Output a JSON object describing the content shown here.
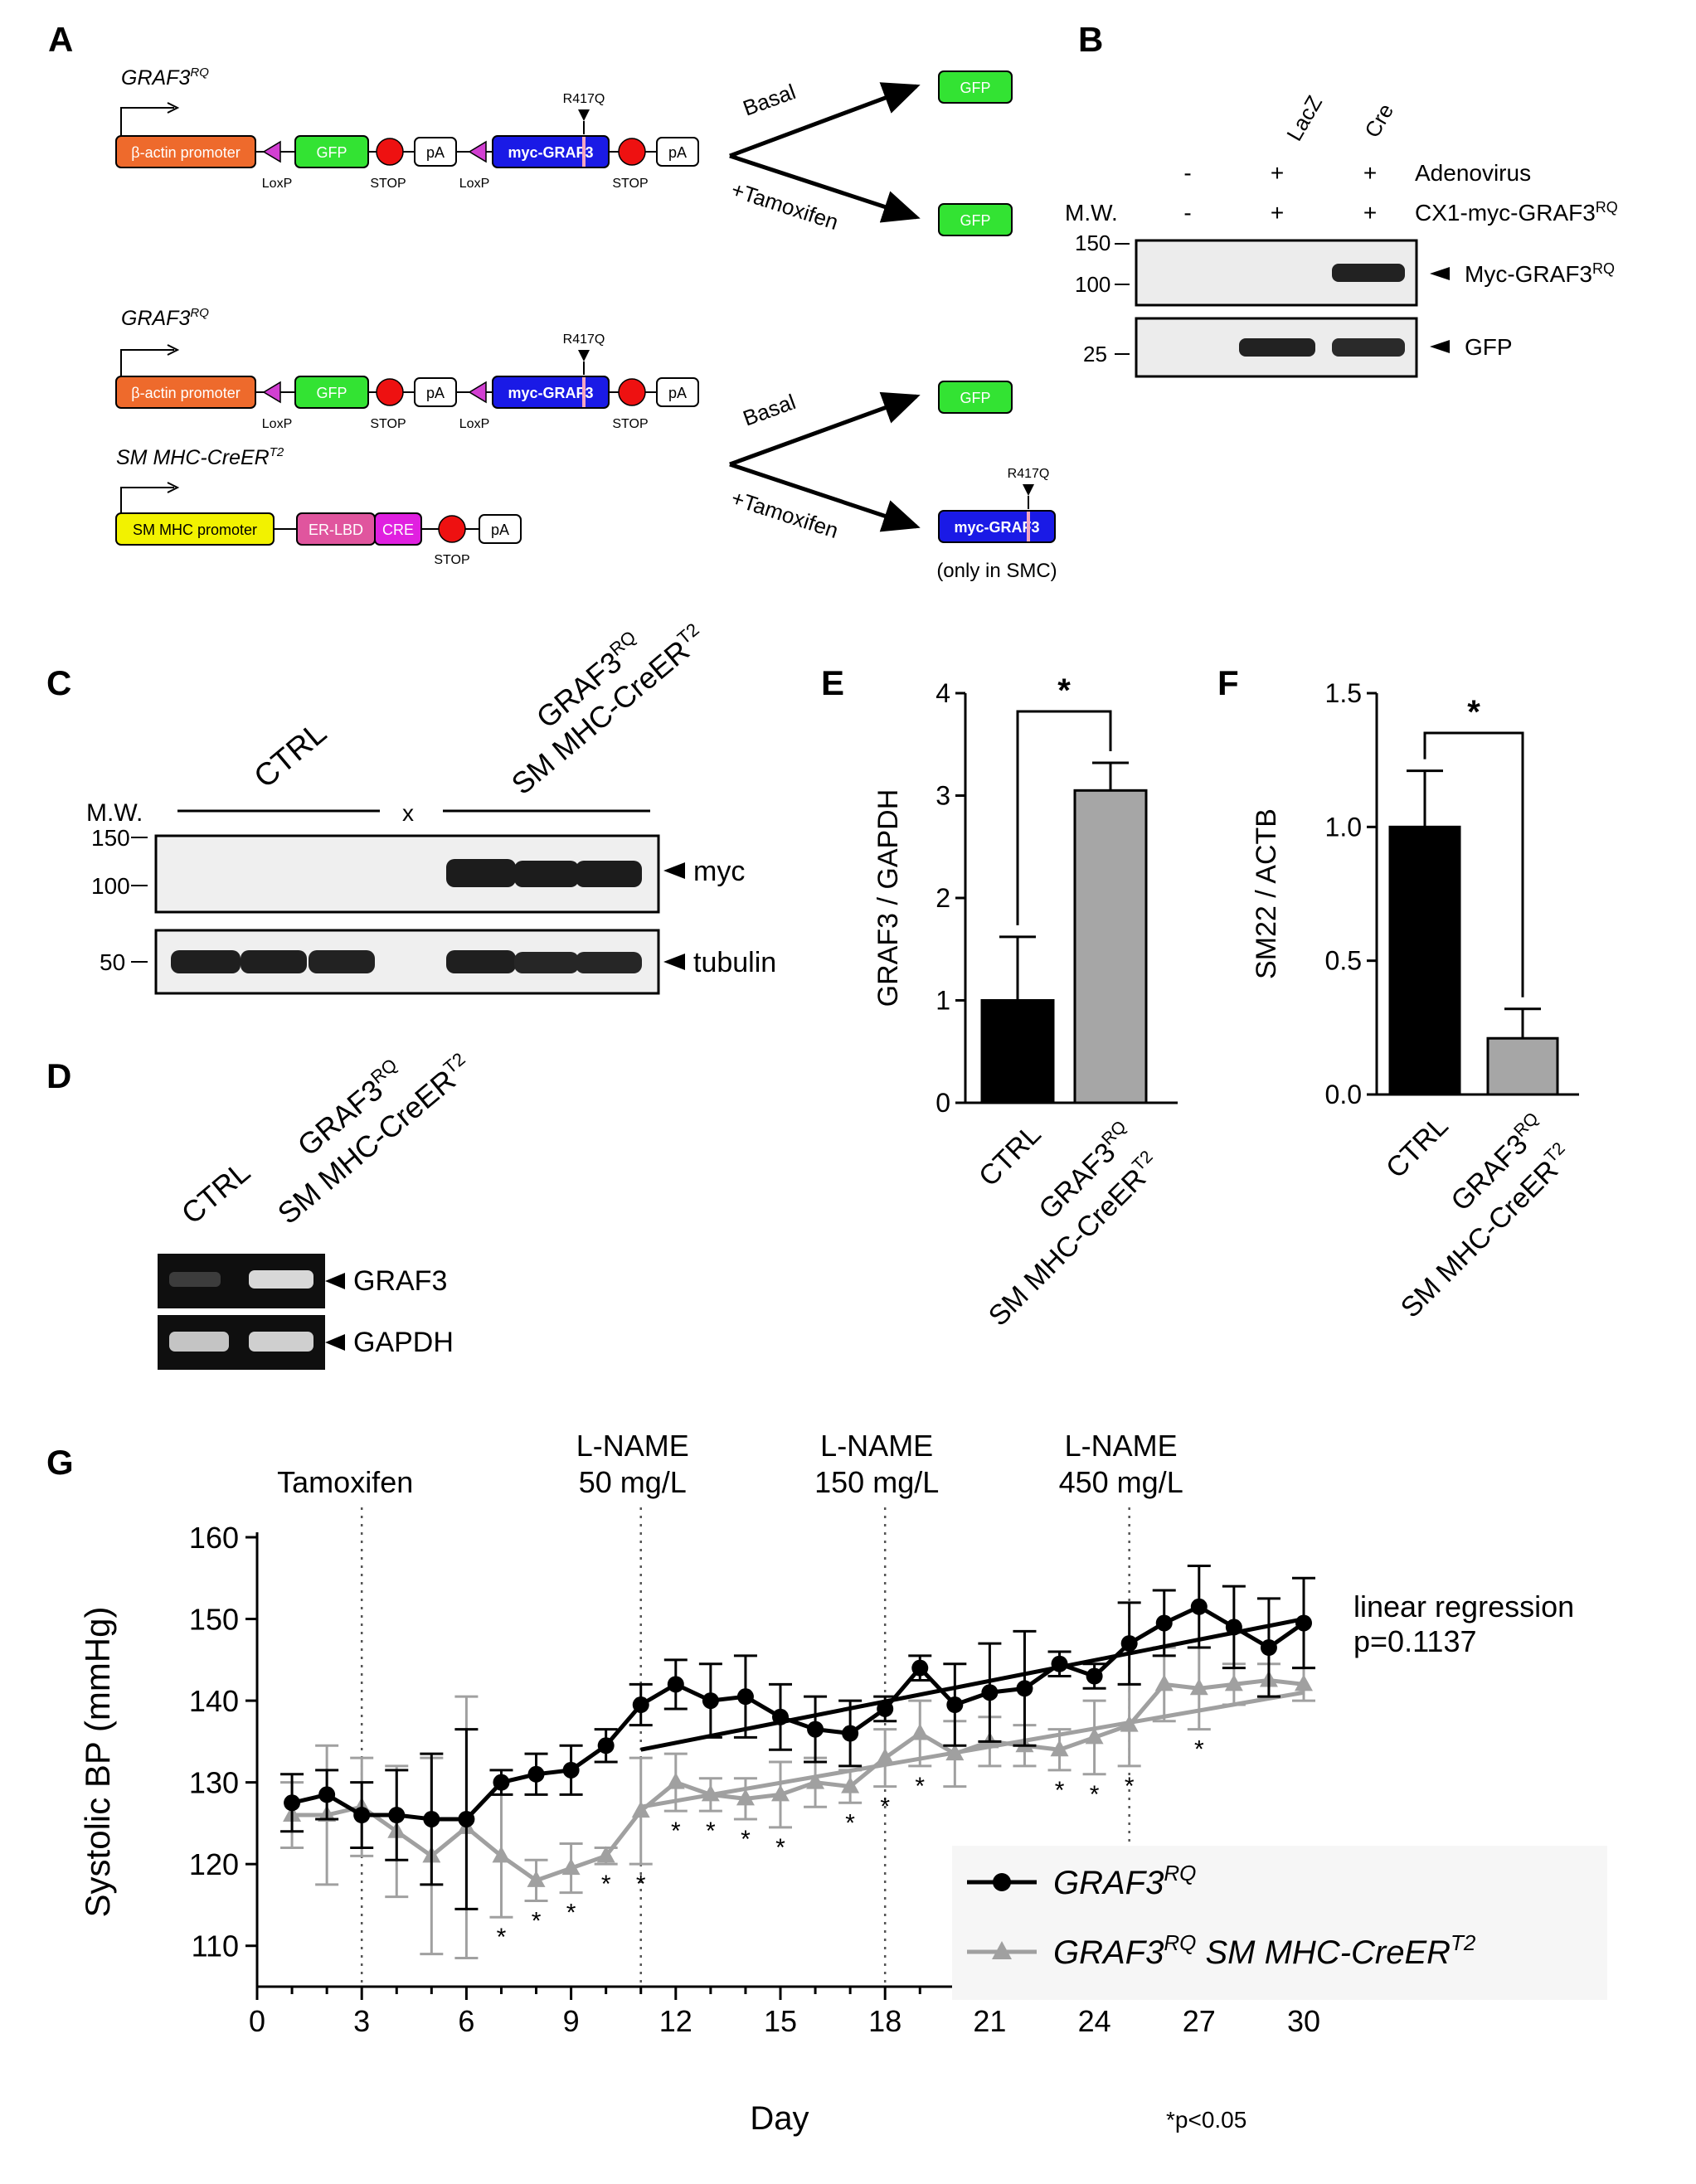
{
  "panels": {
    "A": "A",
    "B": "B",
    "C": "C",
    "D": "D",
    "E": "E",
    "F": "F",
    "G": "G"
  },
  "panel_a": {
    "construct1": {
      "title": "GRAF3",
      "title_sup": "RQ",
      "promoter": "β-actin promoter",
      "gfp": "GFP",
      "pa": "pA",
      "myc": "myc-GRAF3",
      "mutation": "R417Q",
      "loxp": "LoxP",
      "stop": "STOP"
    },
    "construct2": {
      "title": "GRAF3",
      "title_sup": "RQ",
      "promoter": "β-actin promoter",
      "gfp": "GFP",
      "pa": "pA",
      "myc": "myc-GRAF3",
      "mutation": "R417Q",
      "loxp": "LoxP",
      "stop": "STOP"
    },
    "construct3": {
      "title": "SM MHC-CreER",
      "title_sup": "T2",
      "promoter": "SM MHC promoter",
      "erlbd": "ER-LBD",
      "cre": "CRE",
      "pa": "pA",
      "stop": "STOP"
    },
    "outcomes1": {
      "basal": "Basal",
      "tamoxifen": "+Tamoxifen",
      "out_basal": "GFP",
      "out_tam": "GFP"
    },
    "outcomes2": {
      "basal": "Basal",
      "tamoxifen": "+Tamoxifen",
      "out_basal": "GFP",
      "out_tam": "myc-GRAF3",
      "mutation": "R417Q",
      "note": "(only in SMC)"
    }
  },
  "panel_b": {
    "col_lacz": "LacZ",
    "col_cre": "Cre",
    "row1_label": "Adenovirus",
    "row1_values": [
      "-",
      "+",
      "+"
    ],
    "row2_label": "CX1-myc-GRAF3",
    "row2_sup": "RQ",
    "row2_values": [
      "-",
      "+",
      "+"
    ],
    "mw_label": "M.W.",
    "markers_top": [
      "150",
      "100"
    ],
    "markers_bottom": [
      "25"
    ],
    "band1": "Myc-GRAF3",
    "band1_sup": "RQ",
    "band2": "GFP"
  },
  "panel_c": {
    "ctrl": "CTRL",
    "graf3": "GRAF3",
    "graf3_sup": "RQ",
    "smmhc": "SM MHC-CreER",
    "smmhc_sup": "T2",
    "x_mark": "x",
    "mw_label": "M.W.",
    "markers_top": [
      "150",
      "100"
    ],
    "markers_bottom": [
      "50"
    ],
    "band1": "myc",
    "band2": "tubulin"
  },
  "panel_d": {
    "ctrl": "CTRL",
    "graf3": "GRAF3",
    "graf3_sup": "RQ",
    "smmhc": "SM MHC-CreER",
    "smmhc_sup": "T2",
    "band1": "GRAF3",
    "band2": "GAPDH"
  },
  "chart_data": [
    {
      "type": "bar",
      "panel": "E",
      "ylabel": "GRAF3 / GAPDH",
      "ylim": [
        0,
        4
      ],
      "yticks": [
        "0",
        "1",
        "2",
        "3",
        "4"
      ],
      "categories": [
        "CTRL",
        "GRAF3RQ SM MHC-CreERT2"
      ],
      "category_labels": [
        {
          "text": "CTRL"
        },
        {
          "line1": "GRAF3",
          "line1_sup": "RQ",
          "line2": "SM MHC-CreER",
          "line2_sup": "T2"
        }
      ],
      "values": [
        1.0,
        3.05
      ],
      "errors": [
        0.62,
        0.27
      ],
      "bar_colors": [
        "#000000",
        "#a6a6a6"
      ],
      "significance": "*"
    },
    {
      "type": "bar",
      "panel": "F",
      "ylabel": "SM22 / ACTB",
      "ylim": [
        0,
        1.5
      ],
      "yticks": [
        "0.0",
        "0.5",
        "1.0",
        "1.5"
      ],
      "categories": [
        "CTRL",
        "GRAF3RQ SM MHC-CreERT2"
      ],
      "category_labels": [
        {
          "text": "CTRL"
        },
        {
          "line1": "GRAF3",
          "line1_sup": "RQ",
          "line2": "SM MHC-CreER",
          "line2_sup": "T2"
        }
      ],
      "values": [
        1.0,
        0.21
      ],
      "errors": [
        0.21,
        0.11
      ],
      "bar_colors": [
        "#000000",
        "#a6a6a6"
      ],
      "significance": "*"
    },
    {
      "type": "line",
      "panel": "G",
      "xlabel": "Day",
      "ylabel": "Systolic BP (mmHg)",
      "xlim": [
        0,
        30
      ],
      "ylim": [
        105,
        160
      ],
      "xticks": [
        0,
        3,
        6,
        9,
        12,
        15,
        18,
        21,
        24,
        27,
        30
      ],
      "yticks": [
        110,
        120,
        130,
        140,
        150,
        160
      ],
      "events": [
        {
          "day": 3,
          "line1": "Tamoxifen",
          "line2": ""
        },
        {
          "day": 11,
          "line1": "L-NAME",
          "line2": "50 mg/L"
        },
        {
          "day": 18,
          "line1": "L-NAME",
          "line2": "150 mg/L"
        },
        {
          "day": 25,
          "line1": "L-NAME",
          "line2": "450 mg/L"
        }
      ],
      "x": [
        1,
        2,
        3,
        4,
        5,
        6,
        7,
        8,
        9,
        10,
        11,
        12,
        13,
        14,
        15,
        16,
        17,
        18,
        19,
        20,
        21,
        22,
        23,
        24,
        25,
        26,
        27,
        28,
        29,
        30
      ],
      "series": [
        {
          "name": "GRAF3RQ",
          "legend_text": "GRAF3",
          "legend_sup": "RQ",
          "legend_text2": "",
          "legend_sup2": "",
          "color": "#000000",
          "marker": "circle",
          "values": [
            127.5,
            128.5,
            126,
            126,
            125.5,
            125.5,
            130,
            131,
            131.5,
            134.5,
            139.5,
            142,
            140,
            140.5,
            138,
            136.5,
            136,
            139,
            144,
            139.5,
            141,
            141.5,
            144.5,
            143,
            147,
            149.5,
            151.5,
            149,
            146.5,
            149.5
          ],
          "errors": [
            3.5,
            3,
            4,
            5.5,
            8,
            11,
            1.5,
            2.5,
            3,
            2,
            2.5,
            3,
            4.5,
            5,
            4,
            4,
            4,
            1.5,
            1.5,
            5,
            6,
            7,
            1.5,
            1.5,
            5,
            4,
            5,
            5,
            6,
            5.5
          ],
          "regression": {
            "x": [
              11,
              30
            ],
            "y": [
              134,
              150
            ]
          }
        },
        {
          "name": "GRAF3RQ SM MHC-CreERT2",
          "legend_text": "GRAF3",
          "legend_sup": "RQ",
          "legend_text2": " SM MHC-CreER",
          "legend_sup2": "T2",
          "color": "#a0a0a0",
          "marker": "triangle",
          "values": [
            126,
            126,
            127,
            124,
            121,
            124.5,
            121,
            118,
            119.5,
            121,
            126.5,
            130,
            128.5,
            128,
            128.5,
            130,
            129.5,
            133,
            136,
            133.5,
            135,
            134.5,
            134,
            135.5,
            137,
            142,
            141.5,
            142,
            142.5,
            142
          ],
          "errors": [
            4,
            8.5,
            6,
            8,
            12,
            16,
            7.5,
            2.5,
            3,
            1,
            6.5,
            3.5,
            2,
            2.5,
            4,
            3,
            2,
            3.5,
            4,
            4,
            3,
            2.5,
            2.5,
            4.5,
            5,
            4.5,
            5,
            2.5,
            2,
            2
          ],
          "significant_days": [
            7,
            8,
            9,
            10,
            11,
            12,
            13,
            14,
            15,
            17,
            18,
            19,
            23,
            24,
            25,
            27
          ],
          "regression": {
            "x": [
              11,
              30
            ],
            "y": [
              127,
              141
            ]
          }
        }
      ],
      "annotation_line1": "linear regression",
      "annotation_line2": "p=0.1137",
      "footnote": "*p<0.05",
      "sig_mark": "*"
    }
  ]
}
